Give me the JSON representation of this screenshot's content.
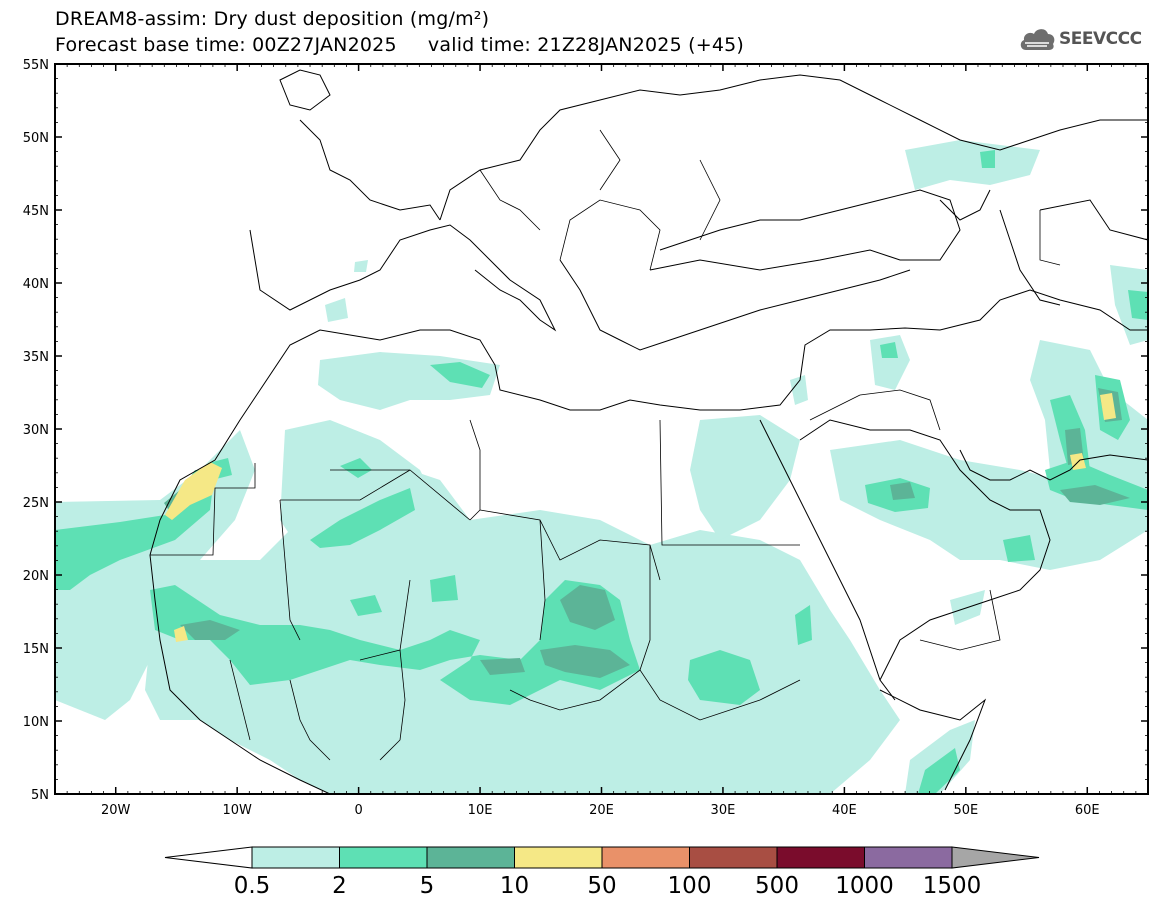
{
  "header": {
    "title": "DREAM8-assim: Dry dust deposition (mg/m²)",
    "line2": "Forecast base time: 00Z27JAN2025     valid time: 21Z28JAN2025 (+45)"
  },
  "logo": {
    "text": "SEEVCCC",
    "icon": "cloud-icon",
    "color": "#555555"
  },
  "map": {
    "lon_range": [
      -25,
      65
    ],
    "lat_range": [
      5,
      55
    ],
    "lat_ticks": [
      {
        "value": 55,
        "label": "55N"
      },
      {
        "value": 50,
        "label": "50N"
      },
      {
        "value": 45,
        "label": "45N"
      },
      {
        "value": 40,
        "label": "40N"
      },
      {
        "value": 35,
        "label": "35N"
      },
      {
        "value": 30,
        "label": "30N"
      },
      {
        "value": 25,
        "label": "25N"
      },
      {
        "value": 20,
        "label": "20N"
      },
      {
        "value": 15,
        "label": "15N"
      },
      {
        "value": 10,
        "label": "10N"
      },
      {
        "value": 5,
        "label": "5N"
      }
    ],
    "lon_ticks": [
      {
        "value": -20,
        "label": "20W"
      },
      {
        "value": -10,
        "label": "10W"
      },
      {
        "value": 0,
        "label": "0"
      },
      {
        "value": 10,
        "label": "10E"
      },
      {
        "value": 20,
        "label": "20E"
      },
      {
        "value": 30,
        "label": "30E"
      },
      {
        "value": 40,
        "label": "40E"
      },
      {
        "value": 50,
        "label": "50E"
      },
      {
        "value": 60,
        "label": "60E"
      }
    ]
  },
  "legend": {
    "colors": [
      "#bdeee5",
      "#5ee0b4",
      "#5cb497",
      "#f5e886",
      "#e99169",
      "#a84e43",
      "#7a0c2c",
      "#8b6aa0"
    ],
    "under_color": "#ffffff",
    "over_color": "#a6a6a6",
    "labels": [
      "0.5",
      "2",
      "5",
      "10",
      "50",
      "100",
      "500",
      "1000",
      "1500"
    ]
  }
}
